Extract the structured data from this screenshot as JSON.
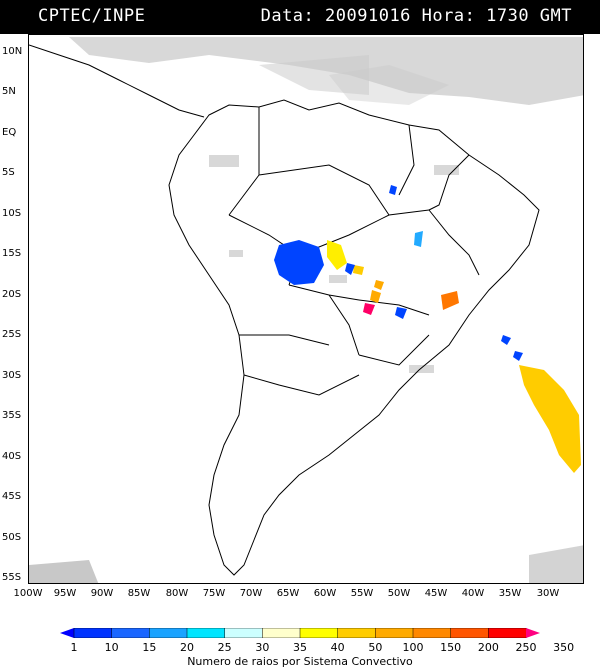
{
  "header": {
    "source": "CPTEC/INPE",
    "date_label": "Data:",
    "date": "20091016",
    "hour_label": "Hora:",
    "hour": "1730 GMT"
  },
  "axes": {
    "lat_labels": [
      "10N",
      "5N",
      "EQ",
      "5S",
      "10S",
      "15S",
      "20S",
      "25S",
      "30S",
      "35S",
      "40S",
      "45S",
      "50S",
      "55S"
    ],
    "lon_labels": [
      "100W",
      "95W",
      "90W",
      "85W",
      "80W",
      "75W",
      "70W",
      "65W",
      "60W",
      "55W",
      "50W",
      "45W",
      "40W",
      "35W",
      "30W"
    ]
  },
  "colorbar": {
    "title": "Numero de raios por Sistema Convectivo",
    "labels": [
      "1",
      "10",
      "15",
      "20",
      "25",
      "30",
      "35",
      "40",
      "50",
      "100",
      "150",
      "200",
      "250",
      "350"
    ],
    "colors": [
      "#0000ff",
      "#0033ff",
      "#1a66ff",
      "#1aa3ff",
      "#00e5ff",
      "#ccffff",
      "#ffffcc",
      "#ffff00",
      "#ffcc00",
      "#ffaa00",
      "#ff8800",
      "#ff5500",
      "#ff0000",
      "#ff0080"
    ]
  },
  "colors": {
    "cloud_gray": "#c8c8c8",
    "land_outline": "#000000",
    "system_blue": "#0044ff",
    "system_yellow": "#ffcc00",
    "system_orange": "#ff8800",
    "system_magenta": "#ff0066",
    "system_cyan": "#22aaff"
  }
}
